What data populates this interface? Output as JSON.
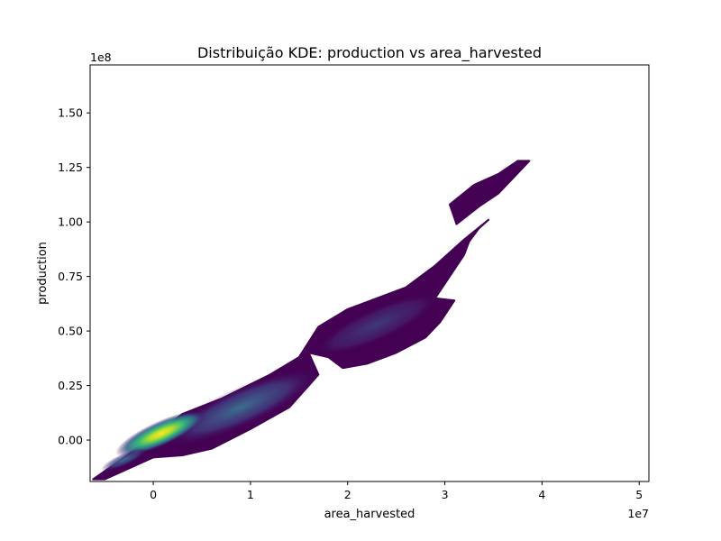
{
  "chart_data": {
    "type": "heatmap",
    "subtype": "kde-density",
    "title": "Distribuição KDE: production vs area_harvested",
    "xlabel": "area_harvested",
    "ylabel": "production",
    "x_offset_label": "1e7",
    "y_offset_label": "1e8",
    "xlim": [
      -0.65,
      5.1
    ],
    "ylim": [
      -0.19,
      1.72
    ],
    "x_ticks": [
      0,
      1,
      2,
      3,
      4,
      5
    ],
    "x_tick_labels": [
      "0",
      "1",
      "2",
      "3",
      "4",
      "5"
    ],
    "y_ticks": [
      0.0,
      0.25,
      0.5,
      0.75,
      1.0,
      1.25,
      1.5
    ],
    "y_tick_labels": [
      "0.00",
      "0.25",
      "0.50",
      "0.75",
      "1.00",
      "1.25",
      "1.50"
    ],
    "grid": false,
    "colormap": "viridis",
    "colors": {
      "low": "#440154",
      "mid_low": "#3b528b",
      "mid": "#21918c",
      "mid_high": "#5ec962",
      "high": "#fde725"
    },
    "density_regions": [
      {
        "name": "main-band",
        "level": 0.05,
        "outline": [
          [
            -0.62,
            -0.18
          ],
          [
            -0.3,
            -0.08
          ],
          [
            0.3,
            0.12
          ],
          [
            0.7,
            0.19
          ],
          [
            1.2,
            0.3
          ],
          [
            1.5,
            0.38
          ],
          [
            1.7,
            0.52
          ],
          [
            2.0,
            0.6
          ],
          [
            2.3,
            0.65
          ],
          [
            2.6,
            0.7
          ],
          [
            2.9,
            0.8
          ],
          [
            3.2,
            0.92
          ],
          [
            3.45,
            1.01
          ],
          [
            3.35,
            0.97
          ],
          [
            3.25,
            0.91
          ],
          [
            3.2,
            0.85
          ],
          [
            3.05,
            0.75
          ],
          [
            2.9,
            0.65
          ],
          [
            3.1,
            0.64
          ],
          [
            2.95,
            0.54
          ],
          [
            2.8,
            0.47
          ],
          [
            2.5,
            0.4
          ],
          [
            2.2,
            0.35
          ],
          [
            1.95,
            0.33
          ],
          [
            1.8,
            0.38
          ],
          [
            1.6,
            0.4
          ],
          [
            1.7,
            0.3
          ],
          [
            1.4,
            0.15
          ],
          [
            1.0,
            0.05
          ],
          [
            0.6,
            -0.04
          ],
          [
            0.3,
            -0.07
          ],
          [
            0.0,
            -0.08
          ],
          [
            -0.5,
            -0.18
          ]
        ]
      },
      {
        "name": "upper-island",
        "level": 0.05,
        "outline": [
          [
            3.05,
            1.08
          ],
          [
            3.3,
            1.17
          ],
          [
            3.55,
            1.22
          ],
          [
            3.75,
            1.28
          ],
          [
            3.87,
            1.28
          ],
          [
            3.7,
            1.2
          ],
          [
            3.55,
            1.13
          ],
          [
            3.35,
            1.07
          ],
          [
            3.12,
            0.99
          ]
        ]
      },
      {
        "name": "mid-cluster",
        "level": 0.2,
        "center": [
          0.9,
          0.15
        ]
      },
      {
        "name": "upper-mid-cluster",
        "level": 0.12,
        "center": [
          2.3,
          0.53
        ]
      },
      {
        "name": "peak",
        "level": 1.0,
        "center": [
          0.08,
          0.03
        ]
      }
    ]
  }
}
